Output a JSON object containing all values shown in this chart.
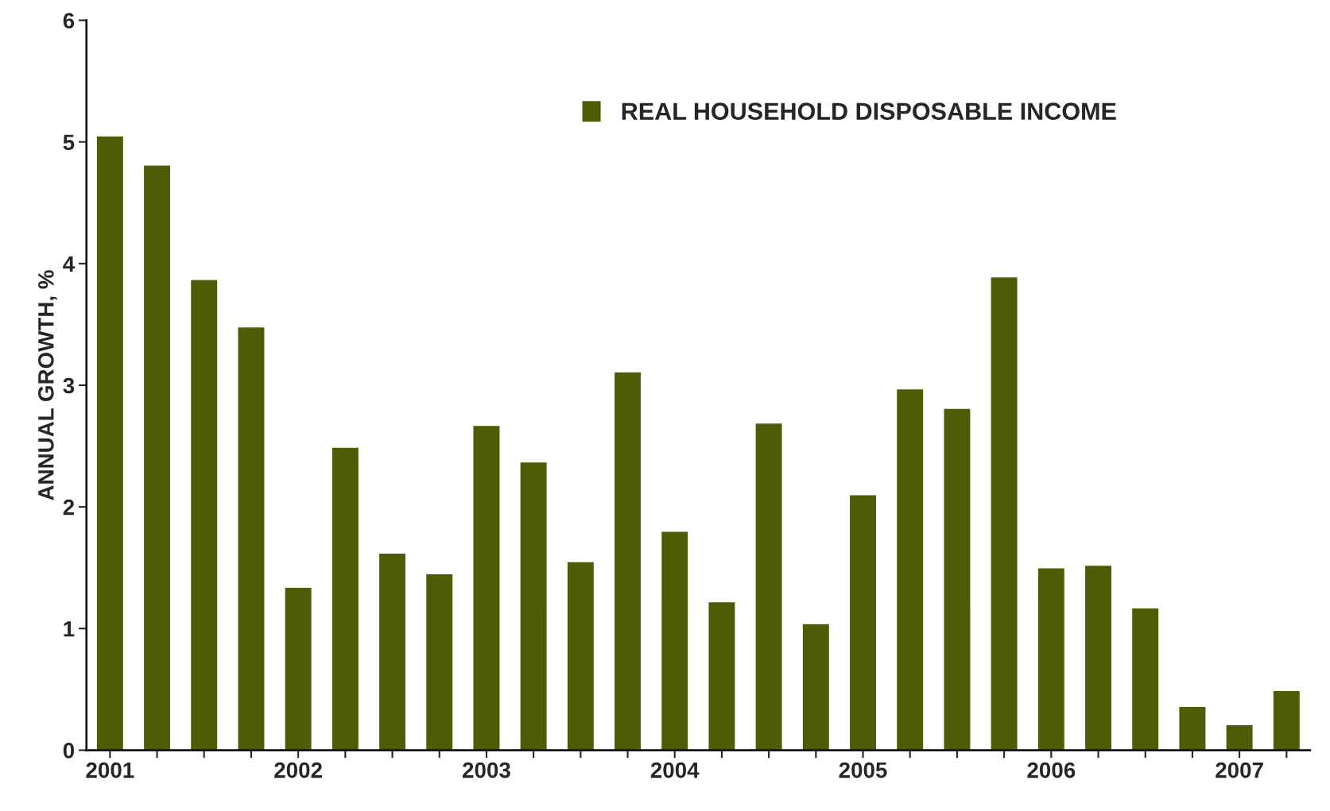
{
  "chart_data": {
    "type": "bar",
    "ylabel": "ANNUAL GROWTH, %",
    "categories": [
      "2001",
      null,
      null,
      null,
      "2002",
      null,
      null,
      null,
      "2003",
      null,
      null,
      null,
      "2004",
      null,
      null,
      null,
      "2005",
      null,
      null,
      null,
      "2006",
      null,
      null,
      null,
      "2007",
      null
    ],
    "series": [
      {
        "name": "REAL HOUSEHOLD DISPOSABLE INCOME",
        "color": "#4f5c05",
        "values": [
          5.05,
          4.81,
          3.87,
          3.48,
          1.34,
          2.49,
          1.62,
          1.45,
          2.67,
          2.37,
          1.55,
          3.11,
          1.8,
          1.22,
          2.69,
          1.04,
          2.1,
          2.97,
          2.81,
          3.89,
          1.5,
          1.52,
          1.17,
          0.36,
          0.21,
          0.49
        ]
      }
    ],
    "ylim": [
      0,
      6
    ],
    "yticks": [
      0,
      1,
      2,
      3,
      4,
      5,
      6
    ],
    "grid": false,
    "legend": "top right"
  }
}
